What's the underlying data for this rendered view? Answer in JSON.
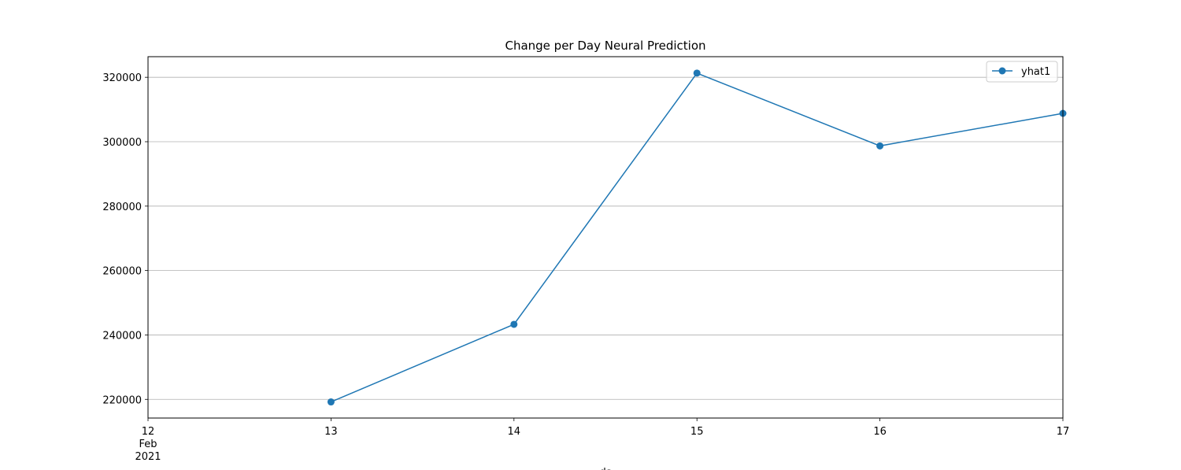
{
  "chart_data": {
    "type": "line",
    "title": "Change per Day Neural Prediction",
    "xlabel": "ds",
    "ylabel": "",
    "x": [
      "2021-02-13",
      "2021-02-14",
      "2021-02-15",
      "2021-02-16",
      "2021-02-17"
    ],
    "series": [
      {
        "name": "yhat1",
        "color": "#1f77b4",
        "marker": "circle",
        "values": [
          219200,
          243300,
          321300,
          298700,
          308800
        ]
      }
    ],
    "xlim": [
      "2021-02-12",
      "2021-02-17"
    ],
    "ylim": [
      214200,
      326400
    ],
    "x_ticks": [
      {
        "value": "2021-02-12",
        "label": "12",
        "sub": [
          "Feb",
          "2021"
        ]
      },
      {
        "value": "2021-02-13",
        "label": "13"
      },
      {
        "value": "2021-02-14",
        "label": "14"
      },
      {
        "value": "2021-02-15",
        "label": "15"
      },
      {
        "value": "2021-02-16",
        "label": "16"
      },
      {
        "value": "2021-02-17",
        "label": "17"
      }
    ],
    "y_ticks": [
      220000,
      240000,
      260000,
      280000,
      300000,
      320000
    ],
    "grid": "y",
    "legend_position": "upper right"
  }
}
